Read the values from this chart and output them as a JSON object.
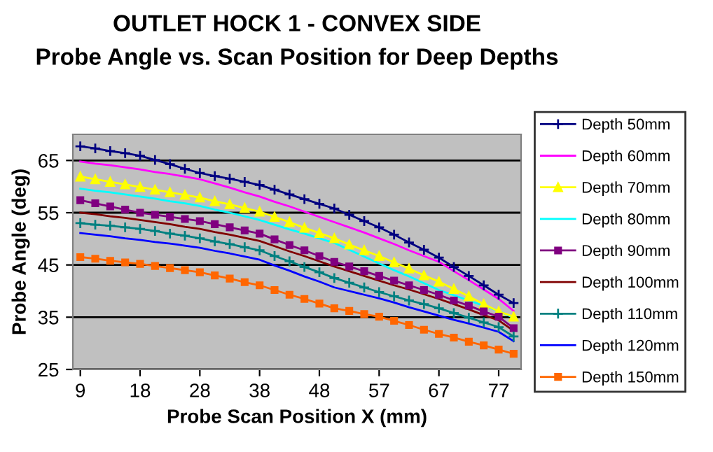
{
  "chart_data": {
    "type": "line",
    "title": "OUTLET HOCK 1 - CONVEX SIDE",
    "subtitle": "Probe Angle vs. Scan Position for Deep Depths",
    "xlabel": "Probe Scan Position X (mm)",
    "ylabel": "Probe Angle (deg)",
    "categories": [
      "9",
      null,
      null,
      null,
      "18",
      null,
      null,
      null,
      "28",
      null,
      null,
      null,
      "38",
      null,
      null,
      null,
      "48",
      null,
      null,
      null,
      "57",
      null,
      null,
      null,
      "67",
      null,
      null,
      null,
      "77",
      null
    ],
    "ylim": [
      25,
      70
    ],
    "yticks": [
      25,
      35,
      45,
      55,
      65
    ],
    "grid": "y",
    "legend": "right",
    "series": [
      {
        "name": "Depth 50mm",
        "color": "#000080",
        "marker": "cross",
        "values": [
          67.7,
          67.3,
          66.8,
          66.4,
          65.9,
          65.1,
          64.3,
          63.4,
          62.6,
          62.0,
          61.5,
          60.9,
          60.3,
          59.4,
          58.5,
          57.6,
          56.7,
          55.8,
          54.6,
          53.4,
          52.2,
          50.8,
          49.3,
          47.9,
          46.4,
          44.6,
          42.9,
          41.1,
          39.3,
          37.7
        ]
      },
      {
        "name": "Depth 60mm",
        "color": "#ff00ff",
        "marker": "none",
        "values": [
          64.8,
          64.4,
          64.1,
          63.7,
          63.3,
          62.8,
          62.4,
          61.9,
          61.4,
          60.6,
          59.8,
          58.9,
          58.1,
          57.1,
          56.2,
          55.2,
          54.2,
          53.2,
          52.2,
          51.2,
          50.1,
          49.0,
          47.8,
          46.7,
          45.6,
          43.8,
          42.1,
          40.3,
          38.5,
          36.2
        ]
      },
      {
        "name": "Depth 70mm",
        "color": "#ffff00",
        "marker": "triangle",
        "values": [
          61.9,
          61.4,
          60.9,
          60.4,
          59.9,
          59.4,
          58.9,
          58.4,
          57.9,
          57.2,
          56.6,
          55.9,
          55.2,
          54.2,
          53.2,
          52.1,
          51.1,
          50.1,
          48.9,
          47.8,
          46.7,
          45.5,
          44.3,
          43.0,
          41.8,
          40.4,
          39.0,
          37.5,
          36.1,
          35.1
        ]
      },
      {
        "name": "Depth 80mm",
        "color": "#00ffff",
        "marker": "none",
        "values": [
          59.6,
          59.2,
          58.9,
          58.5,
          58.1,
          57.7,
          57.2,
          56.8,
          56.3,
          55.6,
          55.0,
          54.3,
          53.6,
          52.7,
          51.8,
          51.0,
          50.1,
          49.2,
          47.9,
          46.6,
          45.3,
          44.0,
          42.8,
          41.5,
          40.2,
          39.2,
          38.2,
          37.2,
          36.2,
          34.9
        ]
      },
      {
        "name": "Depth 90mm",
        "color": "#800080",
        "marker": "square",
        "values": [
          57.4,
          56.8,
          56.2,
          55.6,
          55.0,
          54.6,
          54.2,
          53.8,
          53.4,
          52.8,
          52.2,
          51.6,
          51.0,
          49.9,
          48.8,
          47.8,
          46.7,
          45.6,
          44.7,
          43.8,
          42.9,
          42.0,
          41.1,
          40.2,
          39.3,
          38.2,
          37.2,
          36.1,
          35.1,
          32.9
        ]
      },
      {
        "name": "Depth 100mm",
        "color": "#800000",
        "marker": "none",
        "values": [
          55.0,
          54.7,
          54.3,
          54.0,
          53.6,
          53.2,
          52.8,
          52.3,
          51.9,
          51.3,
          50.8,
          50.2,
          49.6,
          48.6,
          47.6,
          46.7,
          45.7,
          44.7,
          43.8,
          42.9,
          42.0,
          41.1,
          40.3,
          39.4,
          38.5,
          37.5,
          36.5,
          35.4,
          34.4,
          32.4
        ]
      },
      {
        "name": "Depth 110mm",
        "color": "#008080",
        "marker": "cross",
        "values": [
          53.0,
          52.7,
          52.5,
          52.2,
          51.9,
          51.5,
          51.0,
          50.6,
          50.1,
          49.5,
          49.0,
          48.4,
          47.8,
          46.7,
          45.7,
          44.6,
          43.6,
          42.5,
          41.6,
          40.7,
          39.8,
          39.0,
          38.2,
          37.5,
          36.7,
          35.8,
          34.9,
          34.0,
          33.1,
          31.3
        ]
      },
      {
        "name": "Depth 120mm",
        "color": "#0000ff",
        "marker": "none",
        "values": [
          51.1,
          50.8,
          50.5,
          50.1,
          49.8,
          49.4,
          49.1,
          48.7,
          48.3,
          47.7,
          47.2,
          46.6,
          46.0,
          44.9,
          43.9,
          42.8,
          41.8,
          40.7,
          40.0,
          39.3,
          38.6,
          37.8,
          36.9,
          36.1,
          35.3,
          34.5,
          33.8,
          33.0,
          32.2,
          30.4
        ]
      },
      {
        "name": "Depth 150mm",
        "color": "#ff6600",
        "marker": "square",
        "values": [
          46.5,
          46.2,
          45.8,
          45.5,
          45.2,
          44.8,
          44.4,
          44.0,
          43.6,
          43.0,
          42.4,
          41.7,
          41.1,
          40.2,
          39.3,
          38.5,
          37.6,
          36.7,
          36.2,
          35.6,
          35.1,
          34.3,
          33.5,
          32.6,
          31.8,
          31.1,
          30.3,
          29.6,
          28.8,
          28.0
        ]
      }
    ]
  }
}
